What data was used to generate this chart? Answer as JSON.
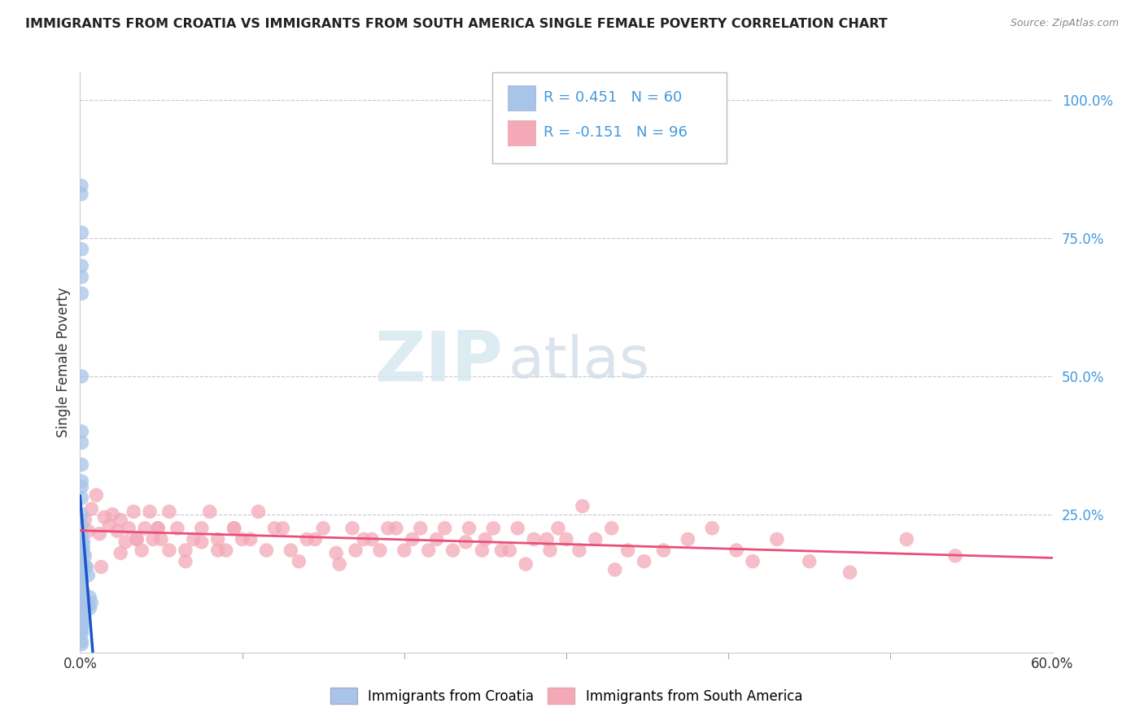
{
  "title": "IMMIGRANTS FROM CROATIA VS IMMIGRANTS FROM SOUTH AMERICA SINGLE FEMALE POVERTY CORRELATION CHART",
  "source": "Source: ZipAtlas.com",
  "xlabel_croatia": "Immigrants from Croatia",
  "xlabel_south_america": "Immigrants from South America",
  "ylabel": "Single Female Poverty",
  "r_croatia": 0.451,
  "n_croatia": 60,
  "r_south_america": -0.151,
  "n_south_america": 96,
  "xlim": [
    0.0,
    0.6
  ],
  "ylim": [
    0.0,
    1.05
  ],
  "croatia_color": "#a8c4e8",
  "croatia_line_color": "#1a55cc",
  "south_america_color": "#f4a8b8",
  "south_america_line_color": "#e8507a",
  "background_color": "#ffffff",
  "grid_color": "#c8c8d0",
  "right_axis_color": "#4499dd",
  "croatia_x": [
    0.0008,
    0.0008,
    0.001,
    0.001,
    0.001,
    0.001,
    0.001,
    0.001,
    0.001,
    0.001,
    0.001,
    0.001,
    0.001,
    0.001,
    0.001,
    0.001,
    0.001,
    0.001,
    0.001,
    0.001,
    0.001,
    0.001,
    0.001,
    0.001,
    0.001,
    0.001,
    0.001,
    0.001,
    0.001,
    0.001,
    0.001,
    0.001,
    0.002,
    0.002,
    0.002,
    0.002,
    0.002,
    0.002,
    0.003,
    0.003,
    0.003,
    0.004,
    0.004,
    0.005,
    0.005,
    0.006,
    0.006,
    0.007,
    0.0008,
    0.0008,
    0.0008,
    0.0008,
    0.001,
    0.001,
    0.001,
    0.001,
    0.001,
    0.001,
    0.001,
    0.001
  ],
  "croatia_y": [
    0.845,
    0.83,
    0.76,
    0.73,
    0.7,
    0.68,
    0.65,
    0.5,
    0.4,
    0.38,
    0.34,
    0.31,
    0.3,
    0.28,
    0.25,
    0.23,
    0.21,
    0.2,
    0.19,
    0.18,
    0.175,
    0.165,
    0.16,
    0.155,
    0.145,
    0.14,
    0.13,
    0.12,
    0.115,
    0.11,
    0.105,
    0.1,
    0.2,
    0.19,
    0.18,
    0.16,
    0.145,
    0.11,
    0.175,
    0.155,
    0.095,
    0.155,
    0.09,
    0.14,
    0.085,
    0.1,
    0.08,
    0.09,
    0.085,
    0.08,
    0.075,
    0.065,
    0.06,
    0.055,
    0.05,
    0.045,
    0.04,
    0.035,
    0.02,
    0.015
  ],
  "sa_x": [
    0.003,
    0.005,
    0.007,
    0.01,
    0.012,
    0.015,
    0.018,
    0.02,
    0.023,
    0.025,
    0.028,
    0.03,
    0.033,
    0.035,
    0.038,
    0.04,
    0.043,
    0.045,
    0.048,
    0.05,
    0.055,
    0.06,
    0.065,
    0.07,
    0.075,
    0.08,
    0.085,
    0.09,
    0.095,
    0.1,
    0.11,
    0.12,
    0.13,
    0.14,
    0.15,
    0.16,
    0.17,
    0.18,
    0.19,
    0.2,
    0.21,
    0.22,
    0.23,
    0.24,
    0.25,
    0.26,
    0.27,
    0.28,
    0.29,
    0.3,
    0.013,
    0.025,
    0.035,
    0.048,
    0.055,
    0.065,
    0.075,
    0.085,
    0.095,
    0.105,
    0.115,
    0.125,
    0.135,
    0.145,
    0.158,
    0.168,
    0.175,
    0.185,
    0.195,
    0.205,
    0.215,
    0.225,
    0.238,
    0.248,
    0.255,
    0.265,
    0.275,
    0.288,
    0.295,
    0.308,
    0.318,
    0.328,
    0.338,
    0.348,
    0.36,
    0.375,
    0.39,
    0.405,
    0.415,
    0.43,
    0.45,
    0.475,
    0.51,
    0.54,
    0.31,
    0.33
  ],
  "sa_y": [
    0.24,
    0.22,
    0.26,
    0.285,
    0.215,
    0.245,
    0.23,
    0.25,
    0.22,
    0.24,
    0.2,
    0.225,
    0.255,
    0.205,
    0.185,
    0.225,
    0.255,
    0.205,
    0.225,
    0.205,
    0.255,
    0.225,
    0.185,
    0.205,
    0.225,
    0.255,
    0.205,
    0.185,
    0.225,
    0.205,
    0.255,
    0.225,
    0.185,
    0.205,
    0.225,
    0.16,
    0.185,
    0.205,
    0.225,
    0.185,
    0.225,
    0.205,
    0.185,
    0.225,
    0.205,
    0.185,
    0.225,
    0.205,
    0.185,
    0.205,
    0.155,
    0.18,
    0.205,
    0.225,
    0.185,
    0.165,
    0.2,
    0.185,
    0.225,
    0.205,
    0.185,
    0.225,
    0.165,
    0.205,
    0.18,
    0.225,
    0.205,
    0.185,
    0.225,
    0.205,
    0.185,
    0.225,
    0.2,
    0.185,
    0.225,
    0.185,
    0.16,
    0.205,
    0.225,
    0.185,
    0.205,
    0.225,
    0.185,
    0.165,
    0.185,
    0.205,
    0.225,
    0.185,
    0.165,
    0.205,
    0.165,
    0.145,
    0.205,
    0.175,
    0.265,
    0.15
  ],
  "watermark_zip": "ZIP",
  "watermark_atlas": "atlas",
  "ytick_labels_right": [
    "100.0%",
    "75.0%",
    "50.0%",
    "25.0%"
  ],
  "ytick_vals_right": [
    1.0,
    0.75,
    0.5,
    0.25
  ],
  "xtick_left_label": "0.0%",
  "xtick_right_label": "60.0%",
  "xtick_minor_vals": [
    0.1,
    0.2,
    0.3,
    0.4,
    0.5
  ]
}
